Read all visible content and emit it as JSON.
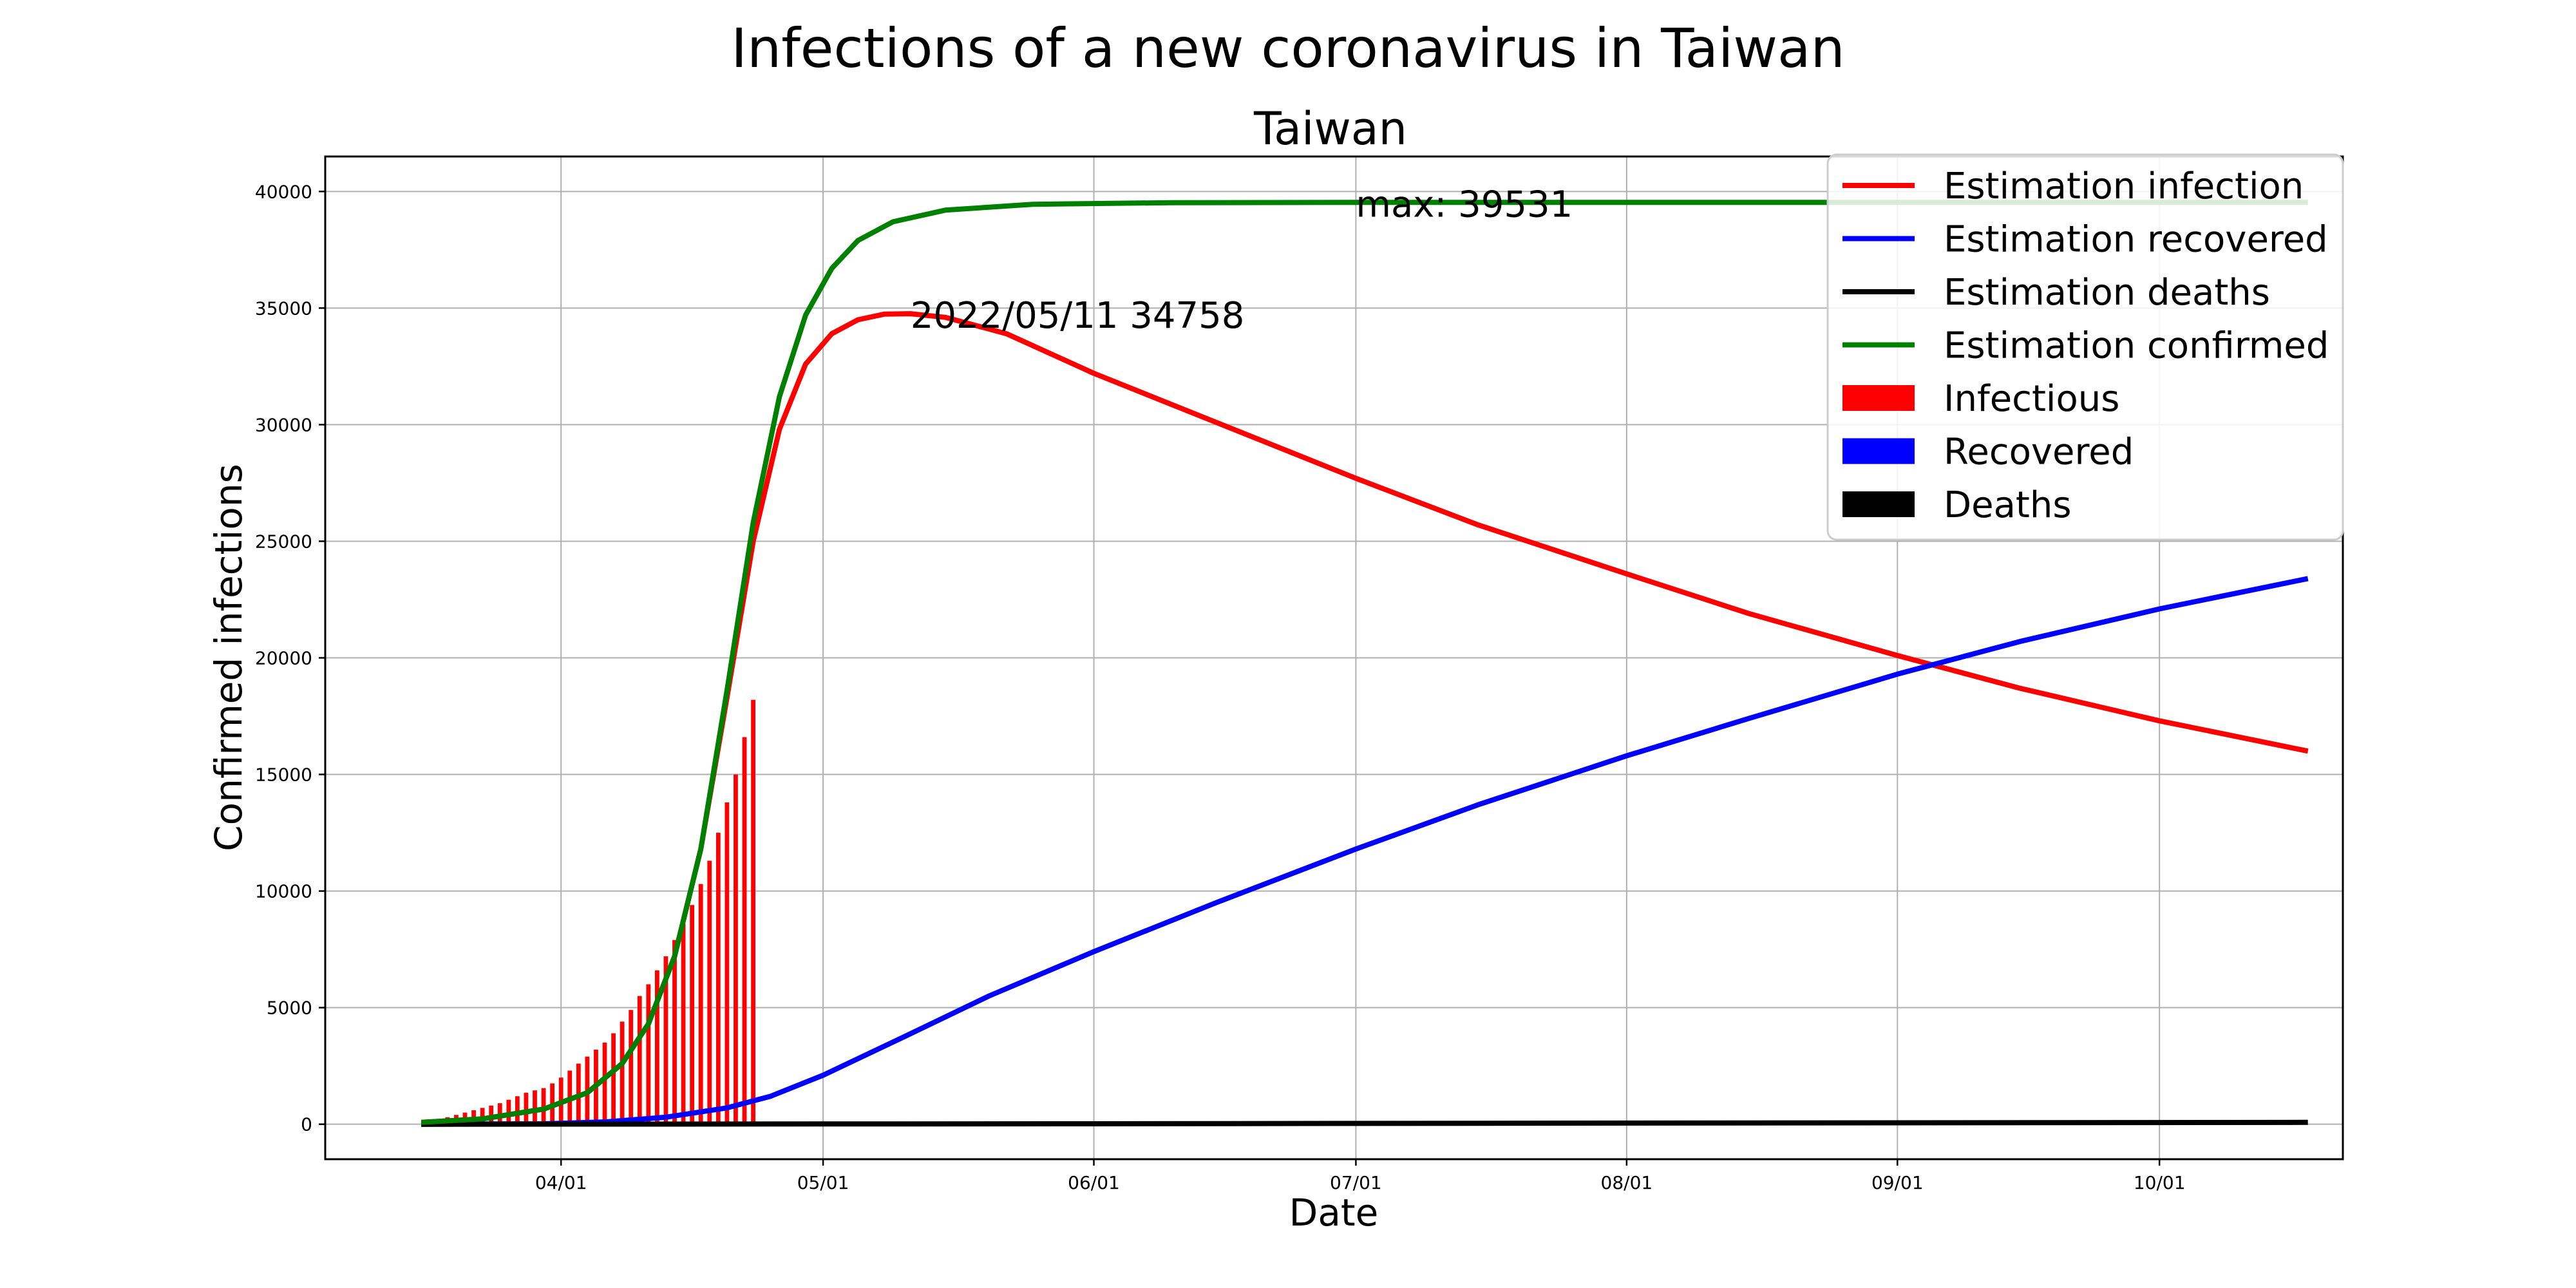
{
  "chart_data": {
    "type": "line",
    "title": "Infections of a new coronavirus in Taiwan",
    "subtitle": "Taiwan",
    "xlabel": "Date",
    "ylabel": "Confirmed infections",
    "grid": true,
    "legend_placement": "top-right",
    "x_range": [
      "2022-03-05",
      "2022-10-22"
    ],
    "ylim": [
      -1500,
      41500
    ],
    "x_ticks": [
      {
        "date": "2022-04-01",
        "label": "04/01"
      },
      {
        "date": "2022-05-01",
        "label": "05/01"
      },
      {
        "date": "2022-06-01",
        "label": "06/01"
      },
      {
        "date": "2022-07-01",
        "label": "07/01"
      },
      {
        "date": "2022-08-01",
        "label": "08/01"
      },
      {
        "date": "2022-09-01",
        "label": "09/01"
      },
      {
        "date": "2022-10-01",
        "label": "10/01"
      }
    ],
    "y_ticks": [
      0,
      5000,
      10000,
      15000,
      20000,
      25000,
      30000,
      35000,
      40000
    ],
    "series": [
      {
        "name": "Estimation infection",
        "kind": "line",
        "color": "#ff0000",
        "points": [
          [
            "2022-03-16",
            80
          ],
          [
            "2022-03-23",
            230
          ],
          [
            "2022-03-30",
            650
          ],
          [
            "2022-04-04",
            1350
          ],
          [
            "2022-04-08",
            2600
          ],
          [
            "2022-04-11",
            4300
          ],
          [
            "2022-04-14",
            7200
          ],
          [
            "2022-04-17",
            11800
          ],
          [
            "2022-04-20",
            18300
          ],
          [
            "2022-04-23",
            25000
          ],
          [
            "2022-04-26",
            29800
          ],
          [
            "2022-04-29",
            32600
          ],
          [
            "2022-05-02",
            33900
          ],
          [
            "2022-05-05",
            34500
          ],
          [
            "2022-05-08",
            34740
          ],
          [
            "2022-05-11",
            34758
          ],
          [
            "2022-05-15",
            34600
          ],
          [
            "2022-05-22",
            33900
          ],
          [
            "2022-06-01",
            32200
          ],
          [
            "2022-06-15",
            30100
          ],
          [
            "2022-07-01",
            27700
          ],
          [
            "2022-07-15",
            25700
          ],
          [
            "2022-08-01",
            23600
          ],
          [
            "2022-08-15",
            21900
          ],
          [
            "2022-09-01",
            20100
          ],
          [
            "2022-09-15",
            18700
          ],
          [
            "2022-10-01",
            17300
          ],
          [
            "2022-10-18",
            16000
          ]
        ]
      },
      {
        "name": "Estimation recovered",
        "kind": "line",
        "color": "#0000ff",
        "points": [
          [
            "2022-03-16",
            0
          ],
          [
            "2022-03-30",
            20
          ],
          [
            "2022-04-06",
            100
          ],
          [
            "2022-04-13",
            300
          ],
          [
            "2022-04-20",
            700
          ],
          [
            "2022-04-25",
            1200
          ],
          [
            "2022-05-01",
            2100
          ],
          [
            "2022-05-10",
            3700
          ],
          [
            "2022-05-20",
            5500
          ],
          [
            "2022-06-01",
            7400
          ],
          [
            "2022-06-15",
            9500
          ],
          [
            "2022-07-01",
            11800
          ],
          [
            "2022-07-15",
            13700
          ],
          [
            "2022-08-01",
            15800
          ],
          [
            "2022-08-15",
            17400
          ],
          [
            "2022-09-01",
            19300
          ],
          [
            "2022-09-15",
            20700
          ],
          [
            "2022-10-01",
            22100
          ],
          [
            "2022-10-18",
            23400
          ]
        ]
      },
      {
        "name": "Estimation deaths",
        "kind": "line",
        "color": "#000000",
        "points": [
          [
            "2022-03-16",
            0
          ],
          [
            "2022-05-01",
            10
          ],
          [
            "2022-06-01",
            20
          ],
          [
            "2022-08-01",
            50
          ],
          [
            "2022-10-18",
            80
          ]
        ]
      },
      {
        "name": "Estimation confirmed",
        "kind": "line",
        "color": "#008000",
        "points": [
          [
            "2022-03-16",
            80
          ],
          [
            "2022-03-23",
            230
          ],
          [
            "2022-03-30",
            650
          ],
          [
            "2022-04-04",
            1350
          ],
          [
            "2022-04-08",
            2600
          ],
          [
            "2022-04-11",
            4300
          ],
          [
            "2022-04-14",
            7200
          ],
          [
            "2022-04-17",
            11800
          ],
          [
            "2022-04-20",
            18600
          ],
          [
            "2022-04-23",
            25800
          ],
          [
            "2022-04-26",
            31200
          ],
          [
            "2022-04-29",
            34700
          ],
          [
            "2022-05-02",
            36700
          ],
          [
            "2022-05-05",
            37900
          ],
          [
            "2022-05-09",
            38700
          ],
          [
            "2022-05-15",
            39200
          ],
          [
            "2022-05-25",
            39450
          ],
          [
            "2022-06-10",
            39520
          ],
          [
            "2022-07-01",
            39531
          ],
          [
            "2022-10-18",
            39531
          ]
        ]
      },
      {
        "name": "Infectious",
        "kind": "bar",
        "color": "#ff0000",
        "points": [
          [
            "2022-03-19",
            300
          ],
          [
            "2022-03-20",
            400
          ],
          [
            "2022-03-21",
            500
          ],
          [
            "2022-03-22",
            600
          ],
          [
            "2022-03-23",
            700
          ],
          [
            "2022-03-24",
            800
          ],
          [
            "2022-03-25",
            900
          ],
          [
            "2022-03-26",
            1050
          ],
          [
            "2022-03-27",
            1200
          ],
          [
            "2022-03-28",
            1350
          ],
          [
            "2022-03-29",
            1450
          ],
          [
            "2022-03-30",
            1550
          ],
          [
            "2022-03-31",
            1750
          ],
          [
            "2022-04-01",
            2000
          ],
          [
            "2022-04-02",
            2300
          ],
          [
            "2022-04-03",
            2600
          ],
          [
            "2022-04-04",
            2900
          ],
          [
            "2022-04-05",
            3200
          ],
          [
            "2022-04-06",
            3500
          ],
          [
            "2022-04-07",
            3900
          ],
          [
            "2022-04-08",
            4400
          ],
          [
            "2022-04-09",
            4900
          ],
          [
            "2022-04-10",
            5500
          ],
          [
            "2022-04-11",
            6000
          ],
          [
            "2022-04-12",
            6600
          ],
          [
            "2022-04-13",
            7200
          ],
          [
            "2022-04-14",
            7900
          ],
          [
            "2022-04-15",
            8600
          ],
          [
            "2022-04-16",
            9400
          ],
          [
            "2022-04-17",
            10300
          ],
          [
            "2022-04-18",
            11300
          ],
          [
            "2022-04-19",
            12500
          ],
          [
            "2022-04-20",
            13800
          ],
          [
            "2022-04-21",
            15000
          ],
          [
            "2022-04-22",
            16600
          ],
          [
            "2022-04-23",
            18200
          ]
        ]
      },
      {
        "name": "Recovered",
        "kind": "bar",
        "color": "#0000ff",
        "points": []
      },
      {
        "name": "Deaths",
        "kind": "bar",
        "color": "#000000",
        "points": []
      }
    ],
    "annotations": [
      {
        "text": "2022/05/11 34758",
        "x": "2022-05-11",
        "y": 34758
      },
      {
        "text": "max: 39531",
        "x": "2022-07-01",
        "y": 39531
      }
    ]
  }
}
